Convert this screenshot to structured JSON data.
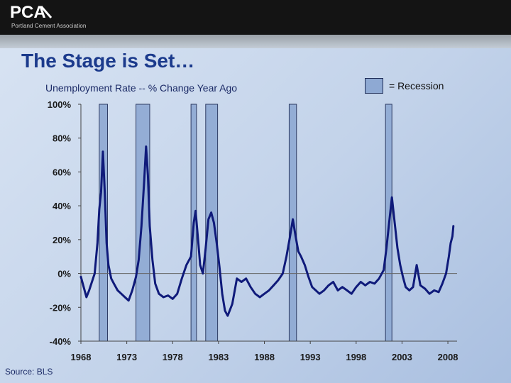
{
  "brand": {
    "logo_text": "PCA",
    "subtitle": "Portland Cement Association"
  },
  "slide": {
    "title": "The Stage is Set…",
    "source": "Source: BLS"
  },
  "legend": {
    "label": "= Recession"
  },
  "colors": {
    "line": "#0f1a7a",
    "recession": "#8ea9d3",
    "zero_line": "#666666"
  },
  "chart_data": {
    "type": "line",
    "title": "Unemployment Rate -- % Change Year Ago",
    "xlabel": "",
    "ylabel": "",
    "xlim": [
      1968,
      2009
    ],
    "ylim": [
      -40,
      100
    ],
    "x_ticks": [
      1968,
      1973,
      1978,
      1983,
      1988,
      1993,
      1998,
      2003,
      2008
    ],
    "y_ticks": [
      100,
      80,
      60,
      40,
      20,
      0,
      -20,
      -40
    ],
    "y_tick_labels": [
      "100%",
      "80%",
      "60%",
      "40%",
      "20%",
      "0%",
      "-20%",
      "-40%"
    ],
    "grid": false,
    "legend_position": "top-right",
    "recessions": [
      [
        1970.0,
        1970.9
      ],
      [
        1974.0,
        1975.5
      ],
      [
        1980.0,
        1980.6
      ],
      [
        1981.6,
        1982.9
      ],
      [
        1990.7,
        1991.5
      ],
      [
        2001.2,
        2001.9
      ]
    ],
    "series": [
      {
        "x": [
          1968.0,
          1968.3,
          1968.6,
          1968.9,
          1969.2,
          1969.5,
          1969.8,
          1970.0,
          1970.2,
          1970.4,
          1970.6,
          1970.8,
          1971.0,
          1971.3,
          1971.6,
          1972.0,
          1972.4,
          1972.8,
          1973.2,
          1973.6,
          1974.0,
          1974.3,
          1974.6,
          1974.9,
          1975.1,
          1975.3,
          1975.5,
          1975.8,
          1976.1,
          1976.5,
          1977.0,
          1977.5,
          1978.0,
          1978.5,
          1979.0,
          1979.5,
          1980.0,
          1980.3,
          1980.5,
          1980.8,
          1981.0,
          1981.3,
          1981.6,
          1981.9,
          1982.2,
          1982.5,
          1982.8,
          1983.1,
          1983.4,
          1983.7,
          1984.0,
          1984.5,
          1985.0,
          1985.5,
          1986.0,
          1986.5,
          1987.0,
          1987.5,
          1988.0,
          1988.5,
          1989.0,
          1989.5,
          1990.0,
          1990.4,
          1990.8,
          1991.1,
          1991.4,
          1991.7,
          1992.0,
          1992.4,
          1992.8,
          1993.2,
          1993.6,
          1994.0,
          1994.5,
          1995.0,
          1995.5,
          1996.0,
          1996.5,
          1997.0,
          1997.5,
          1998.0,
          1998.5,
          1999.0,
          1999.5,
          2000.0,
          2000.5,
          2001.0,
          2001.3,
          2001.6,
          2001.9,
          2002.2,
          2002.5,
          2002.8,
          2003.1,
          2003.4,
          2003.8,
          2004.2,
          2004.6,
          2005.0,
          2005.5,
          2006.0,
          2006.5,
          2007.0,
          2007.4,
          2007.8,
          2008.1,
          2008.3,
          2008.5,
          2008.6
        ],
        "y": [
          -2,
          -8,
          -14,
          -10,
          -5,
          0,
          18,
          38,
          48,
          72,
          48,
          18,
          5,
          -3,
          -6,
          -10,
          -12,
          -14,
          -16,
          -10,
          -2,
          8,
          28,
          55,
          75,
          58,
          28,
          8,
          -6,
          -12,
          -14,
          -13,
          -15,
          -12,
          -3,
          5,
          10,
          30,
          37,
          18,
          5,
          0,
          15,
          32,
          36,
          30,
          18,
          4,
          -12,
          -22,
          -25,
          -18,
          -3,
          -5,
          -3,
          -8,
          -12,
          -14,
          -12,
          -10,
          -7,
          -4,
          0,
          10,
          22,
          32,
          22,
          13,
          10,
          5,
          -2,
          -8,
          -10,
          -12,
          -10,
          -7,
          -5,
          -10,
          -8,
          -10,
          -12,
          -8,
          -5,
          -7,
          -5,
          -6,
          -3,
          2,
          15,
          30,
          45,
          30,
          15,
          5,
          -2,
          -8,
          -10,
          -8,
          5,
          -7,
          -9,
          -12,
          -10,
          -11,
          -6,
          0,
          10,
          18,
          22,
          28
        ]
      }
    ]
  }
}
